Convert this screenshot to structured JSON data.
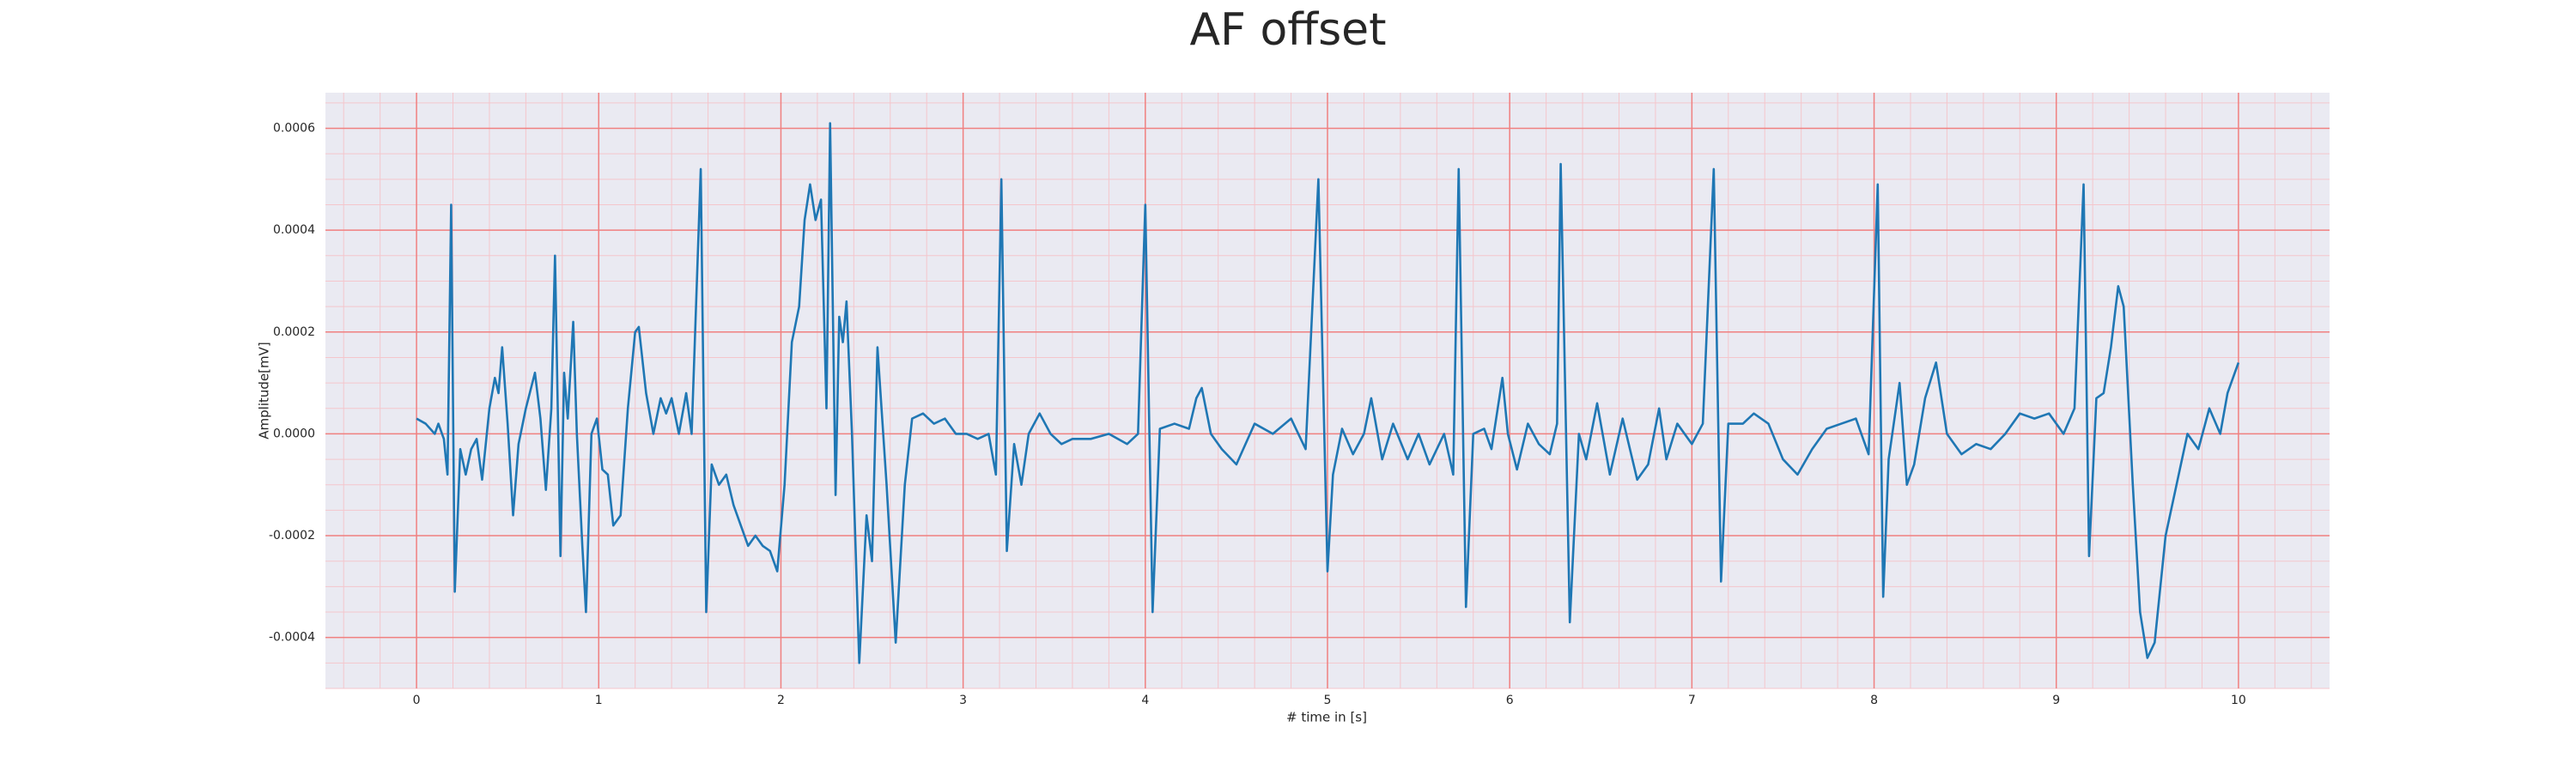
{
  "chart_data": {
    "type": "line",
    "title": "AF offset",
    "x_label": "# time in [s]",
    "y_label": "Amplitude[mV]",
    "xlim": [
      -0.5,
      10.5
    ],
    "ylim": [
      -0.0005,
      0.00067
    ],
    "xticks": [
      0,
      1,
      2,
      3,
      4,
      5,
      6,
      7,
      8,
      9,
      10
    ],
    "yticks": [
      {
        "value": -0.0004,
        "label": "-0.0004"
      },
      {
        "value": -0.0002,
        "label": "-0.0002"
      },
      {
        "value": 0,
        "label": "0.0000"
      },
      {
        "value": 0.0002,
        "label": "0.0002"
      },
      {
        "value": 0.0004,
        "label": "0.0004"
      },
      {
        "value": 0.0006,
        "label": "0.0006"
      }
    ],
    "grid": true,
    "grid_color": "#f08080",
    "minor_grid": true,
    "minor_grid_color": "#f4c6cc",
    "background": "#eaeaf2",
    "color": "#1f77b4",
    "x": [
      0,
      0.05,
      0.1,
      0.12,
      0.15,
      0.17,
      0.19,
      0.21,
      0.24,
      0.27,
      0.3,
      0.33,
      0.36,
      0.4,
      0.43,
      0.45,
      0.47,
      0.5,
      0.53,
      0.56,
      0.6,
      0.65,
      0.68,
      0.71,
      0.74,
      0.76,
      0.79,
      0.81,
      0.83,
      0.86,
      0.88,
      0.91,
      0.93,
      0.96,
      0.99,
      1.02,
      1.05,
      1.08,
      1.12,
      1.16,
      1.2,
      1.22,
      1.26,
      1.3,
      1.34,
      1.37,
      1.4,
      1.44,
      1.48,
      1.51,
      1.56,
      1.59,
      1.62,
      1.66,
      1.7,
      1.74,
      1.78,
      1.82,
      1.86,
      1.9,
      1.94,
      1.98,
      2.02,
      2.06,
      2.1,
      2.13,
      2.16,
      2.19,
      2.22,
      2.25,
      2.27,
      2.3,
      2.32,
      2.34,
      2.36,
      2.39,
      2.43,
      2.47,
      2.5,
      2.53,
      2.58,
      2.63,
      2.68,
      2.72,
      2.78,
      2.84,
      2.9,
      2.96,
      3.02,
      3.08,
      3.14,
      3.18,
      3.21,
      3.24,
      3.28,
      3.32,
      3.36,
      3.42,
      3.48,
      3.54,
      3.6,
      3.7,
      3.8,
      3.9,
      3.96,
      4.0,
      4.04,
      4.08,
      4.16,
      4.24,
      4.28,
      4.31,
      4.36,
      4.42,
      4.5,
      4.6,
      4.7,
      4.8,
      4.88,
      4.95,
      5.0,
      5.03,
      5.08,
      5.14,
      5.2,
      5.24,
      5.3,
      5.36,
      5.44,
      5.5,
      5.56,
      5.64,
      5.69,
      5.72,
      5.76,
      5.8,
      5.86,
      5.9,
      5.96,
      5.99,
      6.04,
      6.1,
      6.16,
      6.22,
      6.26,
      6.28,
      6.33,
      6.38,
      6.42,
      6.48,
      6.55,
      6.62,
      6.7,
      6.76,
      6.82,
      6.86,
      6.92,
      7.0,
      7.06,
      7.12,
      7.16,
      7.2,
      7.28,
      7.34,
      7.42,
      7.5,
      7.58,
      7.66,
      7.74,
      7.82,
      7.9,
      7.97,
      8.02,
      8.05,
      8.08,
      8.14,
      8.18,
      8.22,
      8.28,
      8.34,
      8.4,
      8.48,
      8.56,
      8.64,
      8.72,
      8.8,
      8.88,
      8.96,
      9.04,
      9.1,
      9.15,
      9.18,
      9.22,
      9.26,
      9.3,
      9.34,
      9.37,
      9.42,
      9.46,
      9.5,
      9.54,
      9.6,
      9.66,
      9.72,
      9.78,
      9.84,
      9.9,
      9.94,
      9.98,
      10.0
    ],
    "values": [
      3e-05,
      2e-05,
      0.0,
      2e-05,
      -1e-05,
      -8e-05,
      0.00045,
      -0.00031,
      -3e-05,
      -8e-05,
      -3e-05,
      -1e-05,
      -9e-05,
      5e-05,
      0.00011,
      8e-05,
      0.00017,
      2e-05,
      -0.00016,
      -2e-05,
      5e-05,
      0.00012,
      3e-05,
      -0.00011,
      5e-05,
      0.00035,
      -0.00024,
      0.00012,
      3e-05,
      0.00022,
      0.0,
      -0.00022,
      -0.00035,
      0.0,
      3e-05,
      -7e-05,
      -8e-05,
      -0.00018,
      -0.00016,
      5e-05,
      0.0002,
      0.00021,
      8e-05,
      0.0,
      7e-05,
      4e-05,
      7e-05,
      0.0,
      8e-05,
      0.0,
      0.00052,
      -0.00035,
      -6e-05,
      -0.0001,
      -8e-05,
      -0.00014,
      -0.00018,
      -0.00022,
      -0.0002,
      -0.00022,
      -0.00023,
      -0.00027,
      -0.0001,
      0.00018,
      0.00025,
      0.00042,
      0.00049,
      0.00042,
      0.00046,
      5e-05,
      0.00061,
      -0.00012,
      0.00023,
      0.00018,
      0.00026,
      0.0,
      -0.00045,
      -0.00016,
      -0.00025,
      0.00017,
      -0.0001,
      -0.00041,
      -0.0001,
      3e-05,
      4e-05,
      2e-05,
      3e-05,
      0.0,
      0.0,
      -1e-05,
      0.0,
      -8e-05,
      0.0005,
      -0.00023,
      -2e-05,
      -0.0001,
      0.0,
      4e-05,
      0.0,
      -2e-05,
      -1e-05,
      -1e-05,
      0.0,
      -2e-05,
      0.0,
      0.00045,
      -0.00035,
      1e-05,
      2e-05,
      1e-05,
      7e-05,
      9e-05,
      0.0,
      -3e-05,
      -6e-05,
      2e-05,
      0.0,
      3e-05,
      -3e-05,
      0.0005,
      -0.00027,
      -8e-05,
      1e-05,
      -4e-05,
      0.0,
      7e-05,
      -5e-05,
      2e-05,
      -5e-05,
      0.0,
      -6e-05,
      0.0,
      -8e-05,
      0.00052,
      -0.00034,
      0.0,
      1e-05,
      -3e-05,
      0.00011,
      0.0,
      -7e-05,
      2e-05,
      -2e-05,
      -4e-05,
      2e-05,
      0.00053,
      -0.00037,
      0.0,
      -5e-05,
      6e-05,
      -8e-05,
      3e-05,
      -9e-05,
      -6e-05,
      5e-05,
      -5e-05,
      2e-05,
      -2e-05,
      2e-05,
      0.00052,
      -0.00029,
      2e-05,
      2e-05,
      4e-05,
      2e-05,
      -5e-05,
      -8e-05,
      -3e-05,
      1e-05,
      2e-05,
      3e-05,
      -4e-05,
      0.00049,
      -0.00032,
      -5e-05,
      0.0001,
      -0.0001,
      -6e-05,
      7e-05,
      0.00014,
      0.0,
      -4e-05,
      -2e-05,
      -3e-05,
      0.0,
      4e-05,
      3e-05,
      4e-05,
      0.0,
      5e-05,
      0.00049,
      -0.00024,
      7e-05,
      8e-05,
      0.00017,
      0.00029,
      0.00025,
      -0.0001,
      -0.00035,
      -0.00044,
      -0.00041,
      -0.0002,
      -0.0001,
      0.0,
      -3e-05,
      5e-05,
      0.0,
      8e-05,
      0.00012,
      0.00014
    ]
  }
}
